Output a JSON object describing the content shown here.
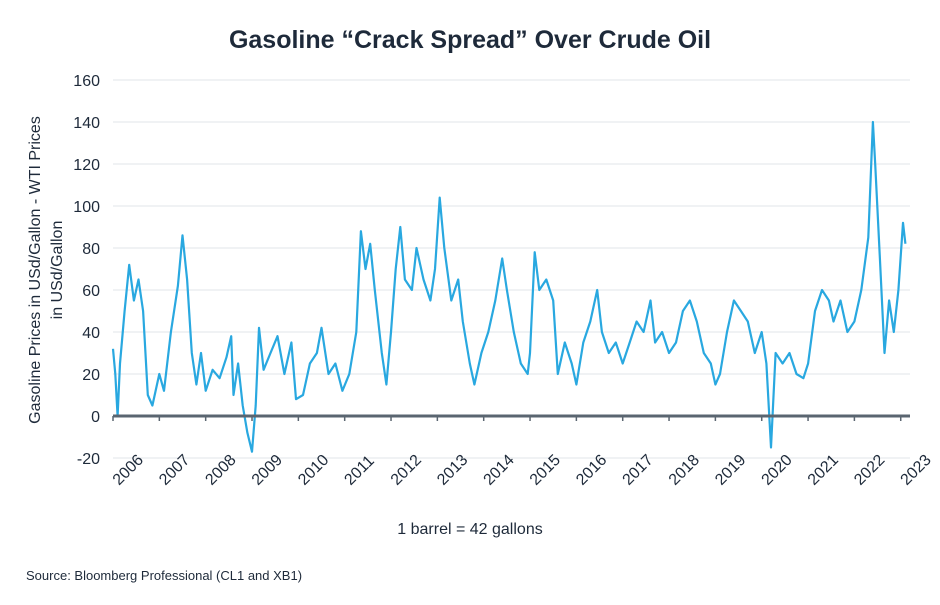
{
  "chart_data": {
    "type": "line",
    "title": "Gasoline “Crack Spread” Over Crude Oil",
    "y_label": [
      "Gasoline Prices in USd/Gallon - WTI Prices",
      "in USd/Gallon"
    ],
    "x_label": "1 barrel = 42 gallons",
    "source": "Source: Bloomberg Professional (CL1 and XB1)",
    "xlim": [
      2006,
      2023.2
    ],
    "xticks": [
      2006,
      2007,
      2008,
      2009,
      2010,
      2011,
      2012,
      2013,
      2014,
      2015,
      2016,
      2017,
      2018,
      2019,
      2020,
      2021,
      2022,
      2023
    ],
    "ylim": [
      -20,
      160
    ],
    "yticks": [
      -20,
      0,
      20,
      40,
      60,
      80,
      100,
      120,
      140,
      160
    ],
    "grid": true,
    "zero_line_color": "#5a6570",
    "series": [
      {
        "color": "#29a8e0",
        "x": [
          2006.0,
          2006.05,
          2006.1,
          2006.15,
          2006.25,
          2006.35,
          2006.45,
          2006.55,
          2006.65,
          2006.75,
          2006.85,
          2006.95,
          2007.0,
          2007.1,
          2007.25,
          2007.4,
          2007.5,
          2007.6,
          2007.7,
          2007.8,
          2007.9,
          2008.0,
          2008.15,
          2008.3,
          2008.45,
          2008.55,
          2008.6,
          2008.7,
          2008.8,
          2008.9,
          2009.0,
          2009.08,
          2009.15,
          2009.25,
          2009.4,
          2009.55,
          2009.7,
          2009.85,
          2009.95,
          2010.1,
          2010.25,
          2010.4,
          2010.5,
          2010.65,
          2010.8,
          2010.95,
          2011.1,
          2011.25,
          2011.35,
          2011.45,
          2011.55,
          2011.65,
          2011.8,
          2011.9,
          2012.0,
          2012.1,
          2012.2,
          2012.3,
          2012.45,
          2012.55,
          2012.7,
          2012.85,
          2012.95,
          2013.05,
          2013.15,
          2013.3,
          2013.45,
          2013.55,
          2013.7,
          2013.8,
          2013.95,
          2014.1,
          2014.25,
          2014.4,
          2014.5,
          2014.65,
          2014.8,
          2014.95,
          2015.0,
          2015.1,
          2015.2,
          2015.35,
          2015.5,
          2015.6,
          2015.75,
          2015.9,
          2016.0,
          2016.15,
          2016.3,
          2016.45,
          2016.55,
          2016.7,
          2016.85,
          2017.0,
          2017.15,
          2017.3,
          2017.45,
          2017.6,
          2017.7,
          2017.85,
          2018.0,
          2018.15,
          2018.3,
          2018.45,
          2018.6,
          2018.75,
          2018.9,
          2019.0,
          2019.1,
          2019.25,
          2019.4,
          2019.55,
          2019.7,
          2019.85,
          2020.0,
          2020.1,
          2020.2,
          2020.3,
          2020.45,
          2020.6,
          2020.75,
          2020.9,
          2021.0,
          2021.15,
          2021.3,
          2021.45,
          2021.55,
          2021.7,
          2021.85,
          2022.0,
          2022.15,
          2022.3,
          2022.4,
          2022.45,
          2022.55,
          2022.65,
          2022.75,
          2022.85,
          2022.95,
          2023.05,
          2023.1
        ],
        "values": [
          32,
          20,
          0,
          25,
          50,
          72,
          55,
          65,
          50,
          10,
          5,
          15,
          20,
          12,
          40,
          62,
          86,
          65,
          30,
          15,
          30,
          12,
          22,
          18,
          28,
          38,
          10,
          25,
          5,
          -8,
          -17,
          5,
          42,
          22,
          30,
          38,
          20,
          35,
          8,
          10,
          25,
          30,
          42,
          20,
          25,
          12,
          20,
          40,
          88,
          70,
          82,
          60,
          30,
          15,
          40,
          70,
          90,
          65,
          60,
          80,
          65,
          55,
          70,
          104,
          80,
          55,
          65,
          45,
          25,
          15,
          30,
          40,
          55,
          75,
          60,
          40,
          25,
          20,
          30,
          78,
          60,
          65,
          55,
          20,
          35,
          25,
          15,
          35,
          45,
          60,
          40,
          30,
          35,
          25,
          35,
          45,
          40,
          55,
          35,
          40,
          30,
          35,
          50,
          55,
          45,
          30,
          25,
          15,
          20,
          40,
          55,
          50,
          45,
          30,
          40,
          25,
          -15,
          30,
          25,
          30,
          20,
          18,
          25,
          50,
          60,
          55,
          45,
          55,
          40,
          45,
          60,
          85,
          140,
          120,
          75,
          30,
          55,
          40,
          60,
          92,
          82
        ]
      }
    ]
  }
}
